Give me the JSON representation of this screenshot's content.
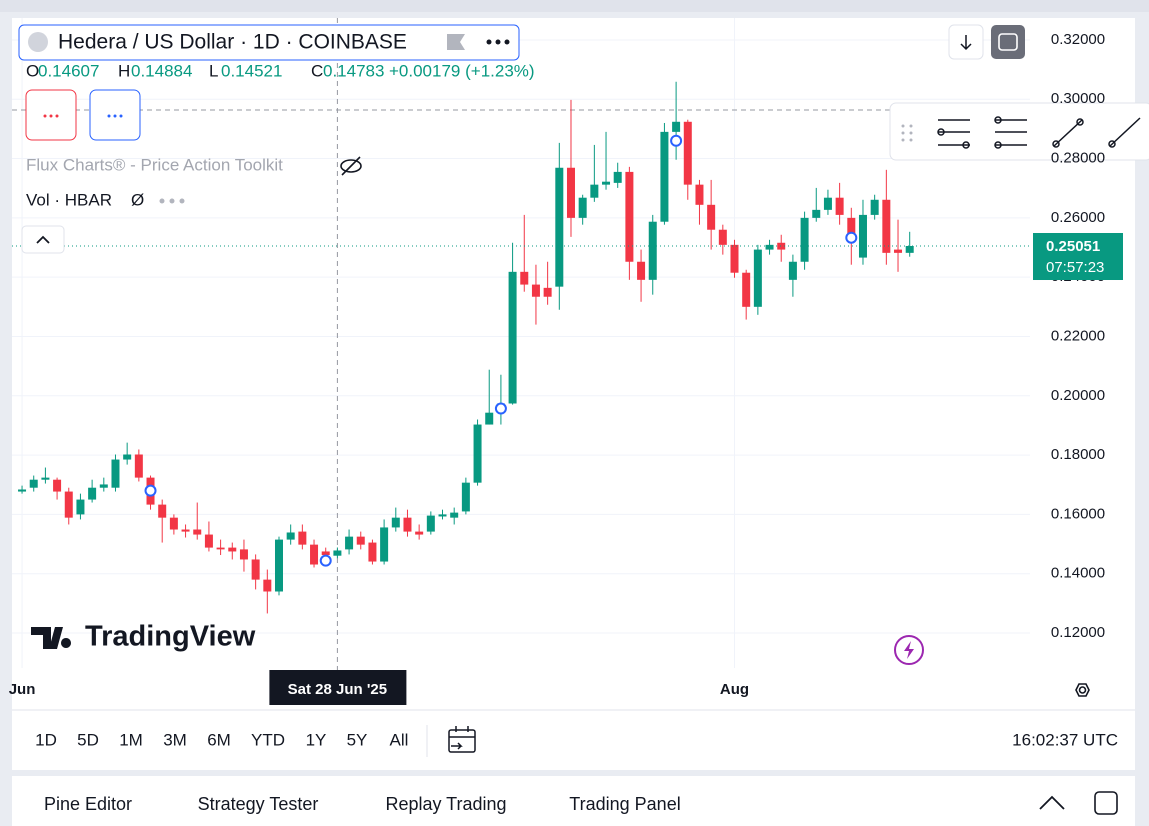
{
  "header": {
    "title": "Hedera / US Dollar · 1D · COINBASE",
    "legend_keys": [
      "O",
      "H",
      "L",
      "C"
    ],
    "change": "+0.00179 (+1.23%)",
    "indicator": "Flux Charts® - Price Action Toolkit",
    "volume": "Vol · HBAR",
    "volume_value": "Ø"
  },
  "logo": "TradingView",
  "toolbar": {
    "ranges": [
      "1D",
      "5D",
      "1M",
      "3M",
      "6M",
      "YTD",
      "1Y",
      "5Y",
      "All"
    ],
    "clock": "16:02:37 UTC"
  },
  "tabs": [
    "Pine Editor",
    "Strategy Tester",
    "Replay Trading",
    "Trading Panel"
  ],
  "chart_data": {
    "type": "candlestick",
    "up_color": "#089981",
    "down_color": "#f23645",
    "xlim": [
      -0.86,
      86.3
    ],
    "xticks": [
      {
        "value": 0,
        "label": "Jun"
      },
      {
        "value": 61,
        "label": "Aug"
      }
    ],
    "ylim": [
      0.1082,
      0.3274
    ],
    "yticks": [
      {
        "value": 0.12,
        "label": "0.12000"
      },
      {
        "value": 0.14,
        "label": "0.14000"
      },
      {
        "value": 0.16,
        "label": "0.16000"
      },
      {
        "value": 0.18,
        "label": "0.18000"
      },
      {
        "value": 0.2,
        "label": "0.20000"
      },
      {
        "value": 0.22,
        "label": "0.22000"
      },
      {
        "value": 0.24,
        "label": "0.24000"
      },
      {
        "value": 0.26,
        "label": "0.26000"
      },
      {
        "value": 0.28,
        "label": "0.28000"
      },
      {
        "value": 0.3,
        "label": "0.30000"
      },
      {
        "value": 0.32,
        "label": "0.32000"
      }
    ],
    "grid": true,
    "open": [
      0.1677,
      0.169,
      0.1717,
      0.1717,
      0.1677,
      0.16,
      0.165,
      0.169,
      0.169,
      0.1785,
      0.1802,
      0.1724,
      0.1633,
      0.1589,
      0.1549,
      0.1549,
      0.1532,
      0.1488,
      0.1488,
      0.1482,
      0.1448,
      0.138,
      0.134,
      0.1515,
      0.1542,
      0.1498,
      0.1475,
      0.14607,
      0.1482,
      0.1525,
      0.1505,
      0.1441,
      0.1556,
      0.1589,
      0.1542,
      0.1542,
      0.1593,
      0.1589,
      0.161,
      0.1707,
      0.1903,
      0.1947,
      0.1974,
      0.2418,
      0.2375,
      0.2364,
      0.2368,
      0.2769,
      0.26,
      0.2668,
      0.2712,
      0.2718,
      0.2755,
      0.2452,
      0.2391,
      0.2587,
      0.289,
      0.2924,
      0.2712,
      0.2644,
      0.256,
      0.2509,
      0.2415,
      0.23,
      0.2493,
      0.2516,
      0.2391,
      0.2452,
      0.26,
      0.2627,
      0.2668,
      0.26,
      0.2466,
      0.261,
      0.2661,
      0.2493,
      0.2482
    ],
    "high": [
      0.1697,
      0.1731,
      0.1758,
      0.1724,
      0.169,
      0.167,
      0.1717,
      0.1724,
      0.1802,
      0.1842,
      0.1819,
      0.1731,
      0.165,
      0.16,
      0.1566,
      0.164,
      0.1576,
      0.1515,
      0.1505,
      0.1515,
      0.1465,
      0.1414,
      0.1525,
      0.1566,
      0.1566,
      0.1515,
      0.1488,
      0.14884,
      0.1549,
      0.1542,
      0.1515,
      0.1583,
      0.1623,
      0.1616,
      0.1566,
      0.161,
      0.1616,
      0.1623,
      0.1724,
      0.192,
      0.2088,
      0.2071,
      0.2516,
      0.261,
      0.2442,
      0.2452,
      0.2853,
      0.2998,
      0.2678,
      0.2846,
      0.289,
      0.2786,
      0.2772,
      0.2493,
      0.261,
      0.292,
      0.3059,
      0.2931,
      0.2728,
      0.2728,
      0.2577,
      0.2526,
      0.2425,
      0.2509,
      0.2526,
      0.2543,
      0.2476,
      0.2621,
      0.2701,
      0.2695,
      0.2718,
      0.2634,
      0.2661,
      0.2678,
      0.2762,
      0.2594,
      0.2553
    ],
    "low": [
      0.167,
      0.1677,
      0.1704,
      0.165,
      0.1566,
      0.1583,
      0.164,
      0.1677,
      0.1677,
      0.1768,
      0.1711,
      0.1616,
      0.1505,
      0.1532,
      0.1522,
      0.1515,
      0.1475,
      0.1463,
      0.1448,
      0.1407,
      0.1347,
      0.1266,
      0.1327,
      0.1498,
      0.1482,
      0.1421,
      0.1441,
      0.14521,
      0.1465,
      0.1482,
      0.1431,
      0.1431,
      0.1542,
      0.1525,
      0.1515,
      0.1532,
      0.1583,
      0.1566,
      0.16,
      0.1697,
      0.1903,
      0.1903,
      0.197,
      0.2351,
      0.224,
      0.2307,
      0.229,
      0.2536,
      0.2577,
      0.2654,
      0.2695,
      0.2701,
      0.2391,
      0.2317,
      0.2341,
      0.2577,
      0.2796,
      0.2661,
      0.2577,
      0.2493,
      0.2476,
      0.2398,
      0.2257,
      0.2273,
      0.2476,
      0.2452,
      0.2334,
      0.2425,
      0.2587,
      0.261,
      0.2577,
      0.2442,
      0.2442,
      0.2594,
      0.2442,
      0.2418,
      0.2469
    ],
    "close": [
      0.1684,
      0.1717,
      0.1724,
      0.1677,
      0.1589,
      0.165,
      0.169,
      0.1701,
      0.1785,
      0.1802,
      0.1724,
      0.1633,
      0.1589,
      0.1549,
      0.1542,
      0.1532,
      0.1488,
      0.1482,
      0.1475,
      0.1448,
      0.138,
      0.134,
      0.1515,
      0.1539,
      0.1498,
      0.1431,
      0.1463,
      0.14783,
      0.1525,
      0.1498,
      0.1441,
      0.1556,
      0.1589,
      0.1542,
      0.1532,
      0.1596,
      0.16,
      0.1606,
      0.1707,
      0.1903,
      0.1943,
      0.1974,
      0.2418,
      0.2375,
      0.2334,
      0.2334,
      0.2769,
      0.26,
      0.2668,
      0.2712,
      0.2722,
      0.2755,
      0.2452,
      0.2391,
      0.2587,
      0.289,
      0.2924,
      0.2712,
      0.2644,
      0.256,
      0.2509,
      0.2415,
      0.23,
      0.2493,
      0.2509,
      0.2493,
      0.2452,
      0.26,
      0.2627,
      0.2668,
      0.261,
      0.2519,
      0.261,
      0.2661,
      0.2482,
      0.2482,
      0.25051
    ],
    "markers": [
      {
        "x": 11,
        "y": 0.168
      },
      {
        "x": 26,
        "y": 0.1444
      },
      {
        "x": 41,
        "y": 0.1957
      },
      {
        "x": 56,
        "y": 0.286
      },
      {
        "x": 71,
        "y": 0.2533
      }
    ],
    "crosshair": {
      "x": 27,
      "label": "Sat 28 Jun '25"
    },
    "countdown": "07:57:23"
  }
}
